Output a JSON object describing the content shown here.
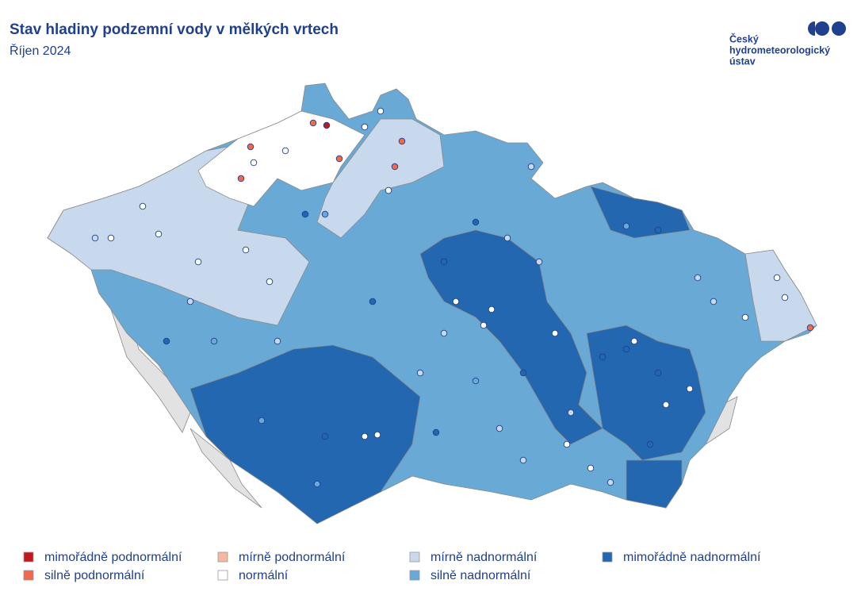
{
  "header": {
    "title": "Stav hladiny podzemní vody v mělkých vrtech",
    "subtitle": "Říjen 2024"
  },
  "logo": {
    "lines": [
      "Český",
      "hydrometeorologický",
      "ústav"
    ]
  },
  "legend": {
    "items": [
      {
        "label": "mimořádně podnormální",
        "color": "#c4171d"
      },
      {
        "label": "silně podnormální",
        "color": "#ef6a4c"
      },
      {
        "label": "mírně podnormální",
        "color": "#f6b99f"
      },
      {
        "label": "normální",
        "color": "#ffffff"
      },
      {
        "label": "mírně nadnormální",
        "color": "#c8d9ee"
      },
      {
        "label": "silně nadnormální",
        "color": "#69a9d5"
      },
      {
        "label": "mimořádně nadnormální",
        "color": "#2367b0"
      }
    ]
  }
}
